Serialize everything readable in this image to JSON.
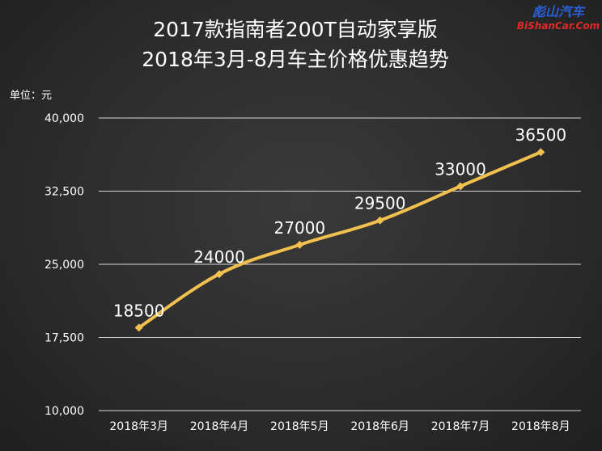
{
  "watermark": {
    "line1": "彪山汽车",
    "line2": "BiShanCar.Com"
  },
  "chart_data": {
    "type": "line",
    "title_lines": [
      "2017款指南者200T自动家享版",
      "2018年3月-8月车主价格优惠趋势"
    ],
    "ylabel": "单位：元",
    "xlabel": "",
    "categories": [
      "2018年3月",
      "2018年4月",
      "2018年5月",
      "2018年6月",
      "2018年7月",
      "2018年8月"
    ],
    "values": [
      18500,
      24000,
      27000,
      29500,
      33000,
      36500
    ],
    "data_labels": [
      "18500",
      "24000",
      "27000",
      "29500",
      "33000",
      "36500"
    ],
    "ylim": [
      10000,
      40000
    ],
    "yticks": [
      10000,
      17500,
      25000,
      32500,
      40000
    ],
    "ytick_labels": [
      "10,000",
      "17,500",
      "25,000",
      "32,500",
      "40,000"
    ],
    "grid": true,
    "legend": "none",
    "line_color": "#f2c04e",
    "grid_color": "#d8d8d8",
    "text_color": "#ffffff"
  }
}
